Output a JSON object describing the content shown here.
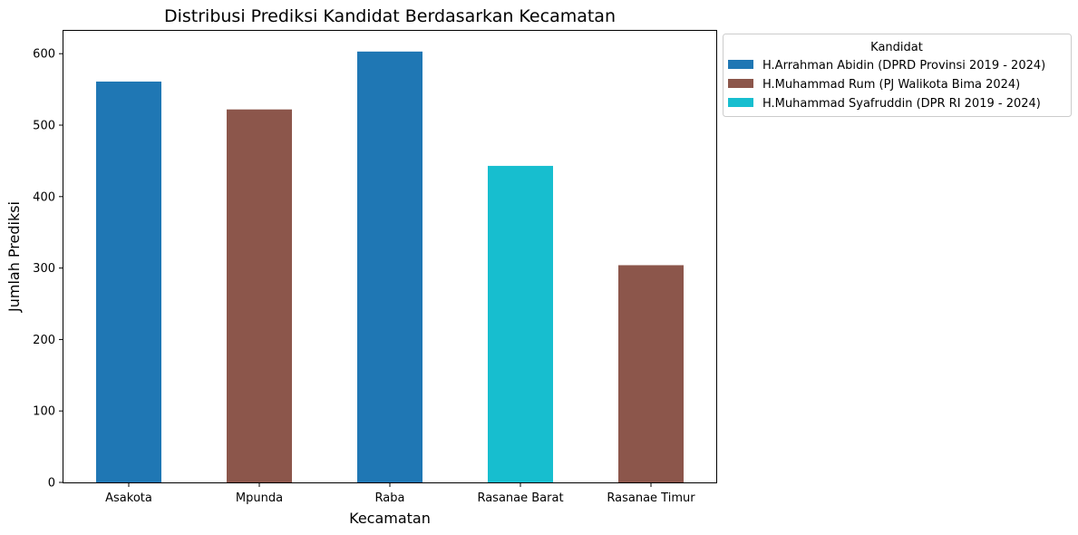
{
  "chart_data": {
    "type": "bar",
    "title": "Distribusi Prediksi Kandidat Berdasarkan Kecamatan",
    "xlabel": "Kecamatan",
    "ylabel": "Jumlah Prediksi",
    "ylim": [
      0,
      632
    ],
    "yticks": [
      0,
      100,
      200,
      300,
      400,
      500,
      600
    ],
    "categories": [
      "Asakota",
      "Mpunda",
      "Raba",
      "Rasanae Barat",
      "Rasanae Timur"
    ],
    "stacked": true,
    "legend": {
      "title": "Kandidat",
      "placement": "outside-upper-right"
    },
    "series": [
      {
        "name": "H.Arrahman Abidin (DPRD Provinsi 2019 - 2024)",
        "color": "#1f77b4",
        "values": [
          561,
          0,
          603,
          0,
          0
        ]
      },
      {
        "name": "H.Muhammad Rum (PJ Walikota Bima 2024)",
        "color": "#8c564b",
        "values": [
          0,
          522,
          0,
          0,
          304
        ]
      },
      {
        "name": "H.Muhammad Syafruddin (DPR RI 2019 - 2024)",
        "color": "#17becf",
        "values": [
          0,
          0,
          0,
          443,
          0
        ]
      }
    ],
    "grid": false
  }
}
